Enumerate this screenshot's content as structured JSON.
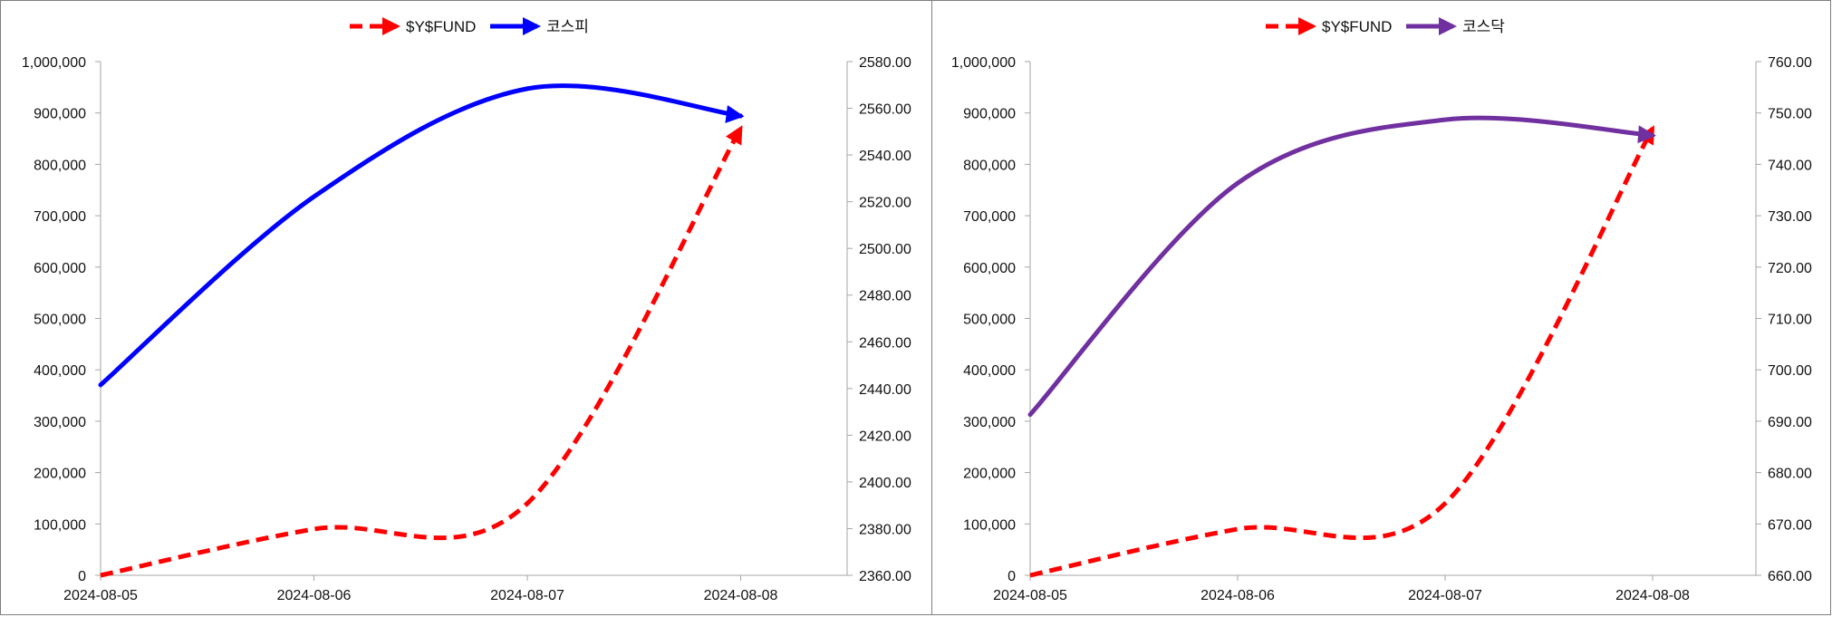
{
  "chart_data": [
    {
      "type": "line",
      "categories": [
        "2024-08-05",
        "2024-08-06",
        "2024-08-07",
        "2024-08-08"
      ],
      "series": [
        {
          "name": "$Y$FUND",
          "axis": "left",
          "color": "#ff0000",
          "dash": "dashed",
          "values": [
            0,
            90000,
            140000,
            870000
          ]
        },
        {
          "name": "코스피",
          "axis": "right",
          "color": "#0000ff",
          "dash": "solid",
          "values": [
            2441.55,
            2522.15,
            2568.41,
            2556.73
          ]
        }
      ],
      "y_left": {
        "min": 0,
        "max": 1000000,
        "ticks": [
          "0",
          "100,000",
          "200,000",
          "300,000",
          "400,000",
          "500,000",
          "600,000",
          "700,000",
          "800,000",
          "900,000",
          "1,000,000"
        ]
      },
      "y_right": {
        "min": 2360,
        "max": 2580,
        "ticks": [
          "2360.00",
          "2380.00",
          "2400.00",
          "2420.00",
          "2440.00",
          "2460.00",
          "2480.00",
          "2500.00",
          "2520.00",
          "2540.00",
          "2560.00",
          "2580.00"
        ]
      },
      "grid": false,
      "legend": "top-center"
    },
    {
      "type": "line",
      "categories": [
        "2024-08-05",
        "2024-08-06",
        "2024-08-07",
        "2024-08-08"
      ],
      "series": [
        {
          "name": "$Y$FUND",
          "axis": "left",
          "color": "#ff0000",
          "dash": "dashed",
          "values": [
            0,
            90000,
            140000,
            870000
          ]
        },
        {
          "name": "코스닥",
          "axis": "right",
          "color": "#7030a0",
          "dash": "solid",
          "values": [
            691.28,
            736.34,
            748.69,
            745.63
          ]
        }
      ],
      "y_left": {
        "min": 0,
        "max": 1000000,
        "ticks": [
          "0",
          "100,000",
          "200,000",
          "300,000",
          "400,000",
          "500,000",
          "600,000",
          "700,000",
          "800,000",
          "900,000",
          "1,000,000"
        ]
      },
      "y_right": {
        "min": 660,
        "max": 760,
        "ticks": [
          "660.00",
          "670.00",
          "680.00",
          "690.00",
          "700.00",
          "710.00",
          "720.00",
          "730.00",
          "740.00",
          "750.00",
          "760.00"
        ]
      },
      "grid": false,
      "legend": "top-center"
    }
  ]
}
